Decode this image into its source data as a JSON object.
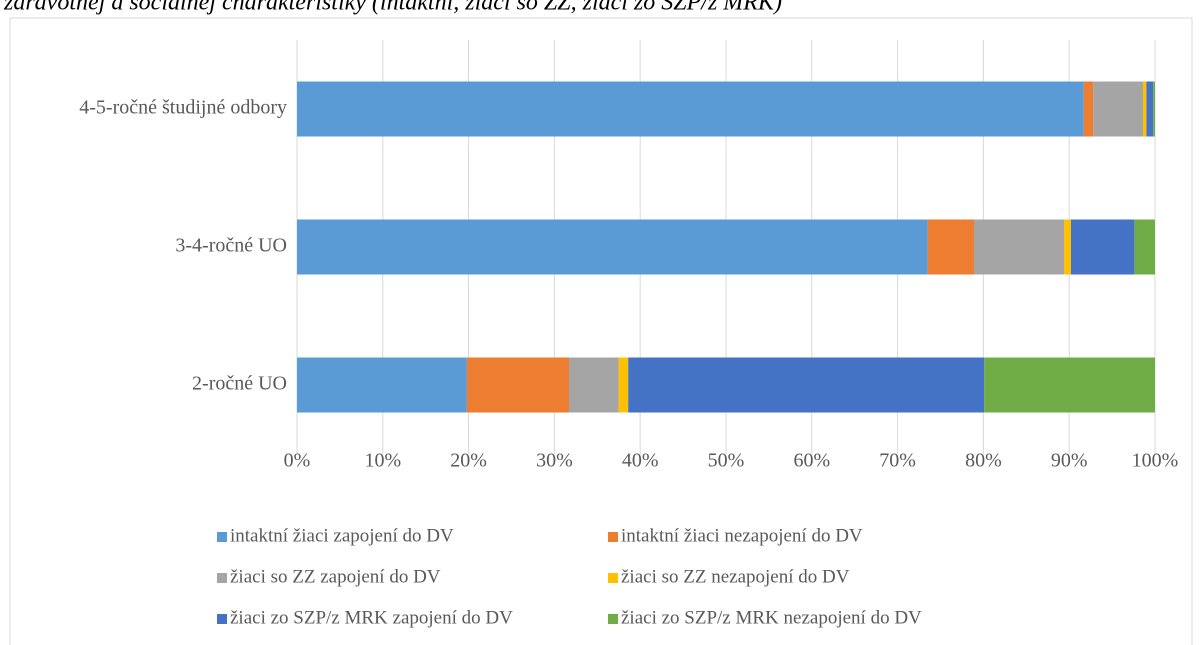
{
  "chart_data": {
    "type": "bar",
    "orientation": "horizontal",
    "stacked": true,
    "title": "zdravotnej a sociálnej charakteristiky (intaktní, žiaci so ZZ, žiaci zo SZP/z MRK)",
    "categories": [
      "2-ročné UO",
      "3-4-ročné UO",
      "4-5-ročné študijné odbory"
    ],
    "series": [
      {
        "name": "intaktní žiaci zapojení do DV",
        "color": "#5b9bd5",
        "values": [
          19.8,
          73.5,
          91.7
        ]
      },
      {
        "name": "intaktní žiaci nezapojení do DV",
        "color": "#ed7d31",
        "values": [
          11.9,
          5.4,
          1.1
        ]
      },
      {
        "name": "žiaci so ZZ zapojení do DV",
        "color": "#a5a5a5",
        "values": [
          5.8,
          10.5,
          5.8
        ]
      },
      {
        "name": "žiaci so ZZ nezapojení do DV",
        "color": "#ffc000",
        "values": [
          1.1,
          0.8,
          0.4
        ]
      },
      {
        "name": "žiaci zo SZP/z MRK zapojení do DV",
        "color": "#4472c4",
        "values": [
          41.5,
          7.4,
          0.8
        ]
      },
      {
        "name": "žiaci zo SZP/z MRK nezapojení do DV",
        "color": "#70ad47",
        "values": [
          19.9,
          2.4,
          0.2
        ]
      }
    ],
    "xlim": [
      0,
      100
    ],
    "xticks": [
      {
        "value": 0,
        "label": "0%"
      },
      {
        "value": 10,
        "label": "10%"
      },
      {
        "value": 20,
        "label": "20%"
      },
      {
        "value": 30,
        "label": "30%"
      },
      {
        "value": 40,
        "label": "40%"
      },
      {
        "value": 50,
        "label": "50%"
      },
      {
        "value": 60,
        "label": "60%"
      },
      {
        "value": 70,
        "label": "70%"
      },
      {
        "value": 80,
        "label": "80%"
      },
      {
        "value": 90,
        "label": "90%"
      },
      {
        "value": 100,
        "label": "100%"
      }
    ],
    "grid": true,
    "legend": "bottom"
  }
}
